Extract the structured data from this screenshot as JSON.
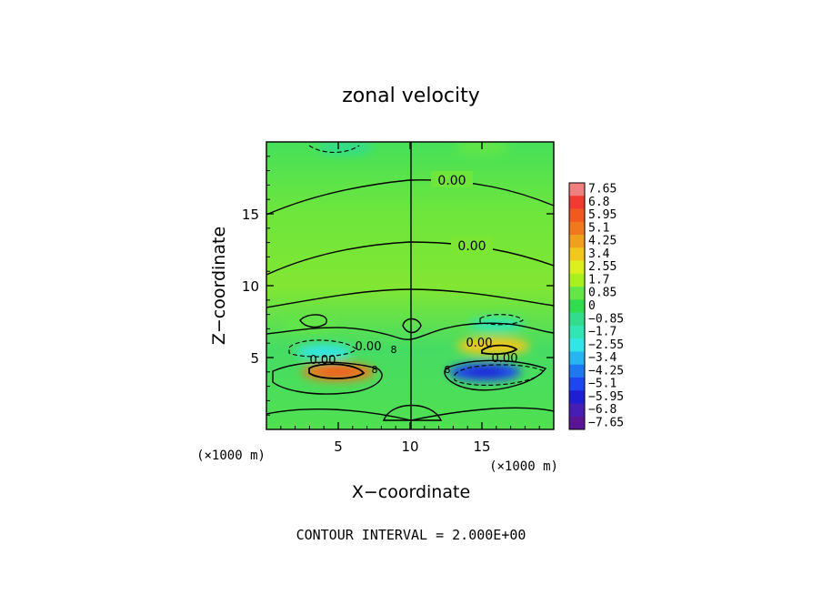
{
  "chart_data": {
    "type": "heatmap",
    "title": "zonal velocity",
    "xlabel": "X−coordinate",
    "ylabel": "Z−coordinate",
    "xlim": [
      0,
      20
    ],
    "ylim": [
      0,
      20
    ],
    "x_ticks": [
      5,
      10,
      15
    ],
    "y_ticks": [
      5,
      10,
      15
    ],
    "x_units": "(×1000 m)",
    "y_units": "(×1000 m)",
    "colorbar": {
      "labels": [
        "7.65",
        "6.8",
        "5.95",
        "5.1",
        "4.25",
        "3.4",
        "2.55",
        "1.7",
        "0.85",
        "0",
        "−0.85",
        "−1.7",
        "−2.55",
        "−3.4",
        "−4.25",
        "−5.1",
        "−5.95",
        "−6.8",
        "−7.65"
      ],
      "values": [
        7.65,
        6.8,
        5.95,
        5.1,
        4.25,
        3.4,
        2.55,
        1.7,
        0.85,
        0,
        -0.85,
        -1.7,
        -2.55,
        -3.4,
        -4.25,
        -5.1,
        -5.95,
        -6.8,
        -7.65
      ],
      "colors": [
        "#f08080",
        "#f03a32",
        "#f05a1e",
        "#f0781e",
        "#f0a01e",
        "#f0c81e",
        "#dcf01e",
        "#aaf01e",
        "#64e646",
        "#32dc50",
        "#32dc8c",
        "#32e6b4",
        "#32e6e6",
        "#28b4f0",
        "#1e78f0",
        "#1e46f0",
        "#1e1ed2",
        "#461eb4",
        "#5a1496"
      ]
    },
    "contour_labels": [
      "0.00",
      "0.00",
      "0.00",
      "0.00",
      "0.00",
      "0.00"
    ],
    "contour_minor_labels": [
      "8",
      "8",
      "8"
    ],
    "features": [
      {
        "x": 5.0,
        "z": 4.0,
        "value": 5.1
      },
      {
        "x": 15.2,
        "z": 4.0,
        "value": -5.1
      },
      {
        "x": 4.0,
        "z": 5.4,
        "value": -2.6
      },
      {
        "x": 15.8,
        "z": 5.8,
        "value": 3.4
      },
      {
        "x": 3.0,
        "z": 7.3,
        "value": 0.9
      },
      {
        "x": 16.0,
        "z": 7.3,
        "value": -1.7
      },
      {
        "x": 5.5,
        "z": 19.6,
        "value": -0.9
      },
      {
        "x": 15.0,
        "z": 19.6,
        "value": 0.9
      }
    ],
    "annotation": "CONTOUR INTERVAL = 2.000E+00"
  }
}
